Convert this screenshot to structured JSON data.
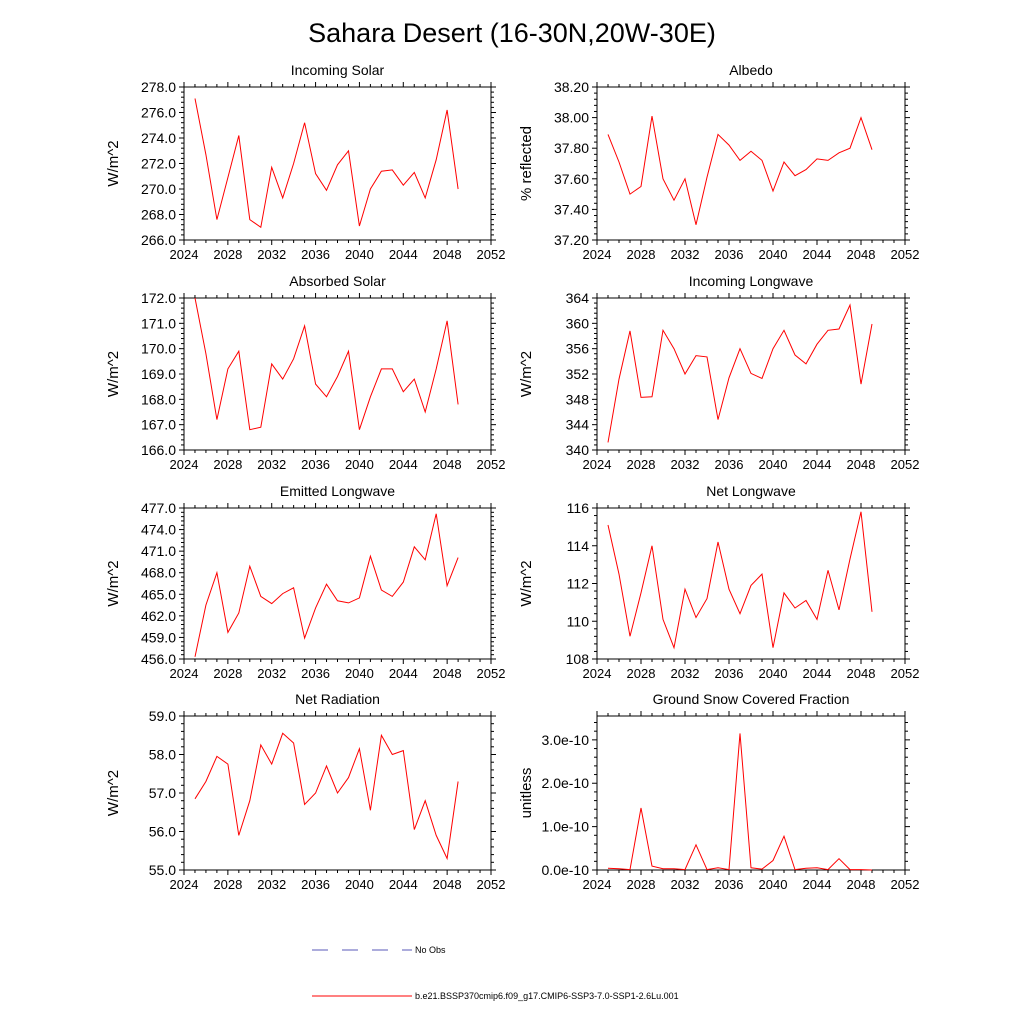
{
  "title": "Sahara Desert (16-30N,20W-30E)",
  "colors": {
    "series": "#ff0000",
    "obs": "#5a5ab8",
    "axis": "#000000"
  },
  "legend": {
    "obs_label": "No Obs",
    "model_label": "b.e21.BSSP370cmip6.f09_g17.CMIP6-SSP3-7.0-SSP1-2.6Lu.001"
  },
  "chart_data": [
    {
      "type": "line",
      "title": "Incoming Solar",
      "ylabel": "W/m^2",
      "xlim": [
        2024,
        2052
      ],
      "ylim": [
        266.0,
        278.0
      ],
      "xticks": [
        2024,
        2028,
        2032,
        2036,
        2040,
        2044,
        2048,
        2052
      ],
      "yticks": [
        266,
        268,
        270,
        272,
        274,
        276,
        278
      ],
      "yticklabels": [
        "266.0",
        "268.0",
        "270.0",
        "272.0",
        "274.0",
        "276.0",
        "278.0"
      ],
      "series": [
        {
          "x": [
            2025,
            2026,
            2027,
            2028,
            2029,
            2030,
            2031,
            2032,
            2033,
            2034,
            2035,
            2036,
            2037,
            2038,
            2039,
            2040,
            2041,
            2042,
            2043,
            2044,
            2045,
            2046,
            2047,
            2048,
            2049
          ],
          "values": [
            277.1,
            272.7,
            267.6,
            270.9,
            274.2,
            267.6,
            267.0,
            271.7,
            269.3,
            272.0,
            275.2,
            271.2,
            269.9,
            271.9,
            273.0,
            267.1,
            270.0,
            271.4,
            271.5,
            270.3,
            271.3,
            269.3,
            272.3,
            276.2,
            270.0
          ]
        }
      ]
    },
    {
      "type": "line",
      "title": "Albedo",
      "ylabel": "% reflected",
      "xlim": [
        2024,
        2052
      ],
      "ylim": [
        37.2,
        38.2
      ],
      "xticks": [
        2024,
        2028,
        2032,
        2036,
        2040,
        2044,
        2048,
        2052
      ],
      "yticks": [
        37.2,
        37.4,
        37.6,
        37.8,
        38.0,
        38.2
      ],
      "yticklabels": [
        "37.20",
        "37.40",
        "37.60",
        "37.80",
        "38.00",
        "38.20"
      ],
      "series": [
        {
          "x": [
            2025,
            2026,
            2027,
            2028,
            2029,
            2030,
            2031,
            2032,
            2033,
            2034,
            2035,
            2036,
            2037,
            2038,
            2039,
            2040,
            2041,
            2042,
            2043,
            2044,
            2045,
            2046,
            2047,
            2048,
            2049
          ],
          "values": [
            37.89,
            37.71,
            37.5,
            37.55,
            38.01,
            37.6,
            37.46,
            37.6,
            37.3,
            37.61,
            37.89,
            37.82,
            37.72,
            37.78,
            37.72,
            37.52,
            37.71,
            37.62,
            37.66,
            37.73,
            37.72,
            37.77,
            37.8,
            38.0,
            37.79
          ]
        }
      ]
    },
    {
      "type": "line",
      "title": "Absorbed Solar",
      "ylabel": "W/m^2",
      "xlim": [
        2024,
        2052
      ],
      "ylim": [
        166.0,
        172.0
      ],
      "xticks": [
        2024,
        2028,
        2032,
        2036,
        2040,
        2044,
        2048,
        2052
      ],
      "yticks": [
        166,
        167,
        168,
        169,
        170,
        171,
        172
      ],
      "yticklabels": [
        "166.0",
        "167.0",
        "168.0",
        "169.0",
        "170.0",
        "171.0",
        "172.0"
      ],
      "series": [
        {
          "x": [
            2025,
            2026,
            2027,
            2028,
            2029,
            2030,
            2031,
            2032,
            2033,
            2034,
            2035,
            2036,
            2037,
            2038,
            2039,
            2040,
            2041,
            2042,
            2043,
            2044,
            2045,
            2046,
            2047,
            2048,
            2049
          ],
          "values": [
            172.0,
            169.8,
            167.2,
            169.2,
            169.9,
            166.8,
            166.9,
            169.4,
            168.8,
            169.6,
            170.9,
            168.6,
            168.1,
            168.9,
            169.9,
            166.8,
            168.1,
            169.2,
            169.2,
            168.3,
            168.8,
            167.5,
            169.2,
            171.1,
            167.8
          ]
        }
      ]
    },
    {
      "type": "line",
      "title": "Incoming Longwave",
      "ylabel": "W/m^2",
      "xlim": [
        2024,
        2052
      ],
      "ylim": [
        340,
        364
      ],
      "xticks": [
        2024,
        2028,
        2032,
        2036,
        2040,
        2044,
        2048,
        2052
      ],
      "yticks": [
        340,
        344,
        348,
        352,
        356,
        360,
        364
      ],
      "yticklabels": [
        "340",
        "344",
        "348",
        "352",
        "356",
        "360",
        "364"
      ],
      "series": [
        {
          "x": [
            2025,
            2026,
            2027,
            2028,
            2029,
            2030,
            2031,
            2032,
            2033,
            2034,
            2035,
            2036,
            2037,
            2038,
            2039,
            2040,
            2041,
            2042,
            2043,
            2044,
            2045,
            2046,
            2047,
            2048,
            2049
          ],
          "values": [
            341.2,
            351.2,
            358.8,
            348.3,
            348.4,
            358.9,
            356.0,
            352.0,
            354.9,
            354.7,
            344.8,
            351.4,
            356.0,
            352.1,
            351.3,
            356.0,
            358.9,
            355.0,
            353.6,
            356.7,
            358.9,
            359.1,
            362.9,
            350.4,
            359.9
          ]
        }
      ]
    },
    {
      "type": "line",
      "title": "Emitted Longwave",
      "ylabel": "W/m^2",
      "xlim": [
        2024,
        2052
      ],
      "ylim": [
        456.0,
        477.0
      ],
      "xticks": [
        2024,
        2028,
        2032,
        2036,
        2040,
        2044,
        2048,
        2052
      ],
      "yticks": [
        456,
        459,
        462,
        465,
        468,
        471,
        474,
        477
      ],
      "yticklabels": [
        "456.0",
        "459.0",
        "462.0",
        "465.0",
        "468.0",
        "471.0",
        "474.0",
        "477.0"
      ],
      "series": [
        {
          "x": [
            2025,
            2026,
            2027,
            2028,
            2029,
            2030,
            2031,
            2032,
            2033,
            2034,
            2035,
            2036,
            2037,
            2038,
            2039,
            2040,
            2041,
            2042,
            2043,
            2044,
            2045,
            2046,
            2047,
            2048,
            2049
          ],
          "values": [
            456.3,
            463.5,
            468.0,
            459.7,
            462.4,
            468.9,
            464.7,
            463.7,
            465.1,
            465.9,
            458.9,
            463.1,
            466.4,
            464.1,
            463.8,
            464.5,
            470.3,
            465.6,
            464.7,
            466.7,
            471.6,
            469.8,
            476.2,
            466.2,
            470.1
          ]
        }
      ]
    },
    {
      "type": "line",
      "title": "Net Longwave",
      "ylabel": "W/m^2",
      "xlim": [
        2024,
        2052
      ],
      "ylim": [
        108,
        116
      ],
      "xticks": [
        2024,
        2028,
        2032,
        2036,
        2040,
        2044,
        2048,
        2052
      ],
      "yticks": [
        108,
        110,
        112,
        114,
        116
      ],
      "yticklabels": [
        "108",
        "110",
        "112",
        "114",
        "116"
      ],
      "series": [
        {
          "x": [
            2025,
            2026,
            2027,
            2028,
            2029,
            2030,
            2031,
            2032,
            2033,
            2034,
            2035,
            2036,
            2037,
            2038,
            2039,
            2040,
            2041,
            2042,
            2043,
            2044,
            2045,
            2046,
            2047,
            2048,
            2049
          ],
          "values": [
            115.1,
            112.5,
            109.2,
            111.5,
            114.0,
            110.1,
            108.6,
            111.7,
            110.2,
            111.2,
            114.2,
            111.7,
            110.4,
            111.9,
            112.5,
            108.6,
            111.5,
            110.7,
            111.1,
            110.1,
            112.7,
            110.6,
            113.3,
            115.8,
            110.5
          ]
        }
      ]
    },
    {
      "type": "line",
      "title": "Net Radiation",
      "ylabel": "W/m^2",
      "xlim": [
        2024,
        2052
      ],
      "ylim": [
        55.0,
        59.0
      ],
      "xticks": [
        2024,
        2028,
        2032,
        2036,
        2040,
        2044,
        2048,
        2052
      ],
      "yticks": [
        55,
        56,
        57,
        58,
        59
      ],
      "yticklabels": [
        "55.0",
        "56.0",
        "57.0",
        "58.0",
        "59.0"
      ],
      "series": [
        {
          "x": [
            2025,
            2026,
            2027,
            2028,
            2029,
            2030,
            2031,
            2032,
            2033,
            2034,
            2035,
            2036,
            2037,
            2038,
            2039,
            2040,
            2041,
            2042,
            2043,
            2044,
            2045,
            2046,
            2047,
            2048,
            2049
          ],
          "values": [
            56.85,
            57.3,
            57.95,
            57.75,
            55.9,
            56.8,
            58.25,
            57.75,
            58.55,
            58.3,
            56.7,
            57.0,
            57.7,
            57.0,
            57.4,
            58.15,
            56.55,
            58.5,
            58.0,
            58.1,
            56.05,
            56.8,
            55.9,
            55.3,
            57.3
          ]
        }
      ]
    },
    {
      "type": "line",
      "title": "Ground Snow Covered Fraction",
      "ylabel": "unitless",
      "xlim": [
        2024,
        2052
      ],
      "ylim": [
        0,
        3.55e-10
      ],
      "xticks": [
        2024,
        2028,
        2032,
        2036,
        2040,
        2044,
        2048,
        2052
      ],
      "yticks": [
        0,
        1e-10,
        2e-10,
        3e-10
      ],
      "yticklabels": [
        "0.0e-10",
        "1.0e-10",
        "2.0e-10",
        "3.0e-10"
      ],
      "series": [
        {
          "x": [
            2025,
            2026,
            2027,
            2028,
            2029,
            2030,
            2031,
            2032,
            2033,
            2034,
            2035,
            2036,
            2037,
            2038,
            2039,
            2040,
            2041,
            2042,
            2043,
            2044,
            2045,
            2046,
            2047,
            2048,
            2049
          ],
          "values": [
            4e-12,
            3e-12,
            1e-12,
            1.43e-10,
            9e-12,
            3e-12,
            3e-12,
            1e-12,
            5.8e-11,
            1e-12,
            5e-12,
            1e-12,
            3.15e-10,
            5e-12,
            2e-12,
            2.2e-11,
            7.8e-11,
            1e-12,
            4e-12,
            5e-12,
            1e-12,
            2.6e-11,
            1e-12,
            1e-12,
            0.0
          ]
        }
      ]
    }
  ]
}
